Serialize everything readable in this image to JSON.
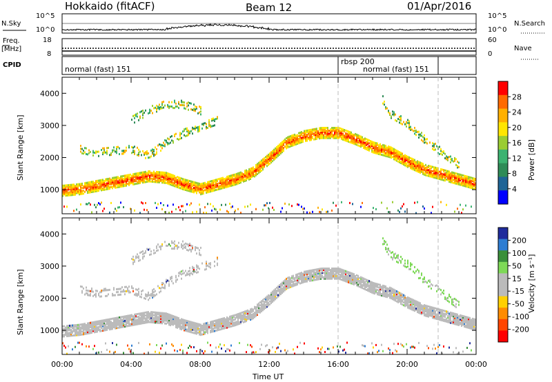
{
  "header": {
    "station": "Hokkaido (fitACF)",
    "beam": "Beam 12",
    "date": "01/Apr/2016"
  },
  "noise": {
    "left_label": "N.Sky",
    "left_top": "10^5",
    "left_bottom": "10^0",
    "right_label": "N.Search",
    "right_top": "10^5",
    "right_bottom": "10^0"
  },
  "freq": {
    "label_line1": "Freq.",
    "label_line2": "[MHz]",
    "left_top": "18",
    "left_bottom": "8",
    "right_label": "Nave",
    "right_top": "60",
    "right_bottom": "0"
  },
  "cpid": {
    "label": "CPID",
    "modes": [
      "normal (fast) 151",
      "rbsp 200",
      "normal (fast) 151"
    ]
  },
  "chart_data": [
    {
      "type": "heatmap",
      "name": "Power",
      "ylabel": "Slant Range [km]",
      "yticks": [
        1000,
        2000,
        3000,
        4000
      ],
      "ylim": [
        250,
        4500
      ],
      "xlim": [
        0,
        24
      ],
      "colorbar_label": "Power [dB]",
      "colorbar_ticks": [
        "28",
        "24",
        "20",
        "16",
        "12",
        "8",
        "4"
      ],
      "colors": [
        "#ff0000",
        "#ff6a00",
        "#ffb000",
        "#ffe600",
        "#9acd32",
        "#3cb371",
        "#2e8b57",
        "#1e6496",
        "#0000ff"
      ],
      "echo_bands": [
        {
          "t": [
            0,
            1,
            2,
            3,
            4,
            5,
            6,
            7,
            8,
            9,
            10,
            11,
            12,
            13,
            14,
            15,
            16,
            17,
            18,
            19,
            20,
            21,
            22,
            23,
            24
          ],
          "r": [
            1000,
            1050,
            1150,
            1250,
            1350,
            1450,
            1400,
            1200,
            1050,
            1200,
            1350,
            1550,
            2000,
            2500,
            2700,
            2800,
            2800,
            2600,
            2350,
            2200,
            1900,
            1650,
            1500,
            1350,
            1200
          ]
        },
        {
          "t": [
            1,
            2,
            3,
            4,
            5,
            6,
            7,
            8,
            9
          ],
          "r": [
            2300,
            2200,
            2250,
            2300,
            2100,
            2500,
            2800,
            3000,
            3200
          ]
        },
        {
          "t": [
            4,
            5,
            6,
            7,
            8
          ],
          "r": [
            3200,
            3500,
            3700,
            3700,
            3500
          ]
        },
        {
          "t": [
            18.5,
            19,
            20,
            21,
            22,
            23
          ],
          "r": [
            3900,
            3400,
            3100,
            2600,
            2200,
            1800
          ]
        }
      ]
    },
    {
      "type": "heatmap",
      "name": "Velocity",
      "ylabel": "Slant Range [km]",
      "yticks": [
        1000,
        2000,
        3000,
        4000
      ],
      "ylim": [
        250,
        4500
      ],
      "xlim": [
        0,
        24
      ],
      "colorbar_label": "Velocity [m s⁻¹]",
      "colorbar_ticks": [
        "200",
        "100",
        "50",
        "15",
        "-15",
        "-50",
        "-100",
        "-200"
      ],
      "colors": [
        "#1f2b9c",
        "#2e7dd2",
        "#3a8f3a",
        "#7ed957",
        "#bbbbbb",
        "#bbbbbb",
        "#ffd000",
        "#ff8c00",
        "#ff4500",
        "#ff0000"
      ],
      "xticks": [
        "00:00",
        "04:00",
        "08:00",
        "12:00",
        "16:00",
        "20:00",
        "00:00"
      ],
      "xlabel": "Time UT"
    }
  ]
}
